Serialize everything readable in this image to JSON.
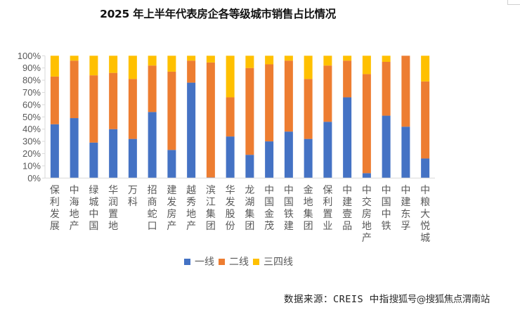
{
  "chart_data": {
    "type": "bar",
    "stacked": true,
    "percent_stacked": true,
    "title": "2025 年上半年代表房企各等级城市销售占比情况",
    "xlabel": "",
    "ylabel": "",
    "ylim": [
      0,
      100
    ],
    "yticks": [
      "0%",
      "10%",
      "20%",
      "30%",
      "40%",
      "50%",
      "60%",
      "70%",
      "80%",
      "90%",
      "100%"
    ],
    "grid": false,
    "legend_position": "bottom",
    "categories": [
      "保利发展",
      "中海地产",
      "绿城中国",
      "华润置地",
      "万科",
      "招商蛇口",
      "建发房产",
      "越秀地产",
      "滨江集团",
      "华发股份",
      "龙湖集团",
      "中国金茂",
      "中国铁建",
      "金地集团",
      "保利置业",
      "中建壹品",
      "中交房地产",
      "中国中铁",
      "中建东孚",
      "中粮大悦城"
    ],
    "series": [
      {
        "name": "一线",
        "color": "#4472C4",
        "values": [
          44,
          49,
          29,
          40,
          32,
          54,
          23,
          78,
          0.5,
          34,
          19,
          30,
          38,
          32,
          46,
          66,
          4,
          51,
          42,
          16
        ]
      },
      {
        "name": "二线",
        "color": "#ED7D31",
        "values": [
          39,
          47,
          55,
          46,
          49,
          38,
          64,
          18,
          94,
          32,
          71,
          63,
          58,
          49,
          46,
          30,
          81,
          44,
          58,
          63
        ]
      },
      {
        "name": "三四线",
        "color": "#FFC000",
        "values": [
          17,
          4,
          16,
          14,
          19,
          8,
          13,
          4,
          5.5,
          34,
          10,
          7,
          4,
          19,
          8,
          4,
          15,
          5,
          0,
          21
        ]
      }
    ]
  },
  "legend": {
    "items": [
      {
        "label": "一线",
        "color": "#4472C4"
      },
      {
        "label": "二线",
        "color": "#ED7D31"
      },
      {
        "label": "三四线",
        "color": "#FFC000"
      }
    ]
  },
  "source": {
    "text": "数据来源：CREIS 中指",
    "watermark": "搜狐号@搜狐焦点渭南站"
  }
}
